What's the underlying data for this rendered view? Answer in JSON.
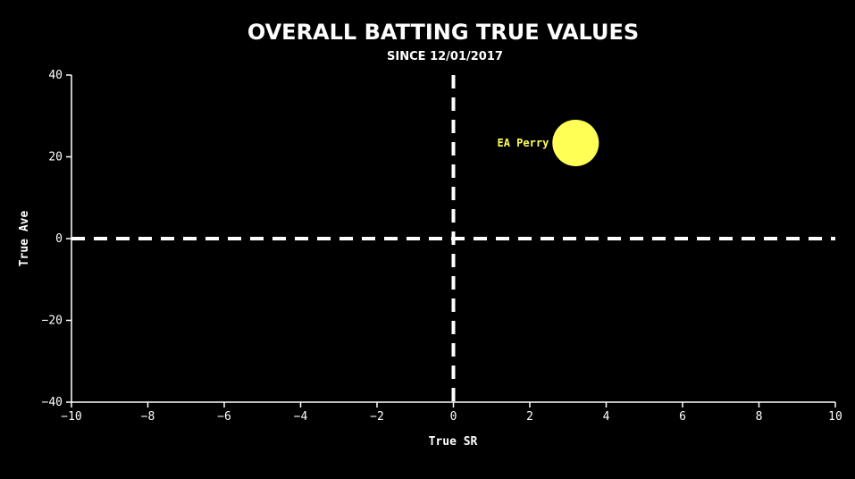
{
  "chart_data": {
    "type": "scatter",
    "title": "OVERALL BATTING TRUE VALUES",
    "subtitle": "SINCE 12/01/2017",
    "xlabel": "True SR",
    "ylabel": "True Ave",
    "xlim": [
      -10,
      10
    ],
    "ylim": [
      -40,
      40
    ],
    "xticks": [
      -10,
      -8,
      -6,
      -4,
      -2,
      0,
      2,
      4,
      6,
      8,
      10
    ],
    "yticks": [
      -40,
      -20,
      0,
      20,
      40
    ],
    "xtick_labels": [
      "−10",
      "−8",
      "−6",
      "−4",
      "−2",
      "0",
      "2",
      "4",
      "6",
      "8",
      "10"
    ],
    "ytick_labels": [
      "−40",
      "−20",
      "0",
      "20",
      "40"
    ],
    "grid": false,
    "reference_lines": [
      {
        "axis": "x",
        "value": 0,
        "style": "dashed"
      },
      {
        "axis": "y",
        "value": 0,
        "style": "dashed"
      }
    ],
    "points": [
      {
        "label": "EA Perry",
        "x": 3.2,
        "y": 23.4,
        "color": "#ffff55"
      }
    ]
  },
  "colors": {
    "background": "#000000",
    "foreground": "#ffffff",
    "point": "#ffff55"
  }
}
